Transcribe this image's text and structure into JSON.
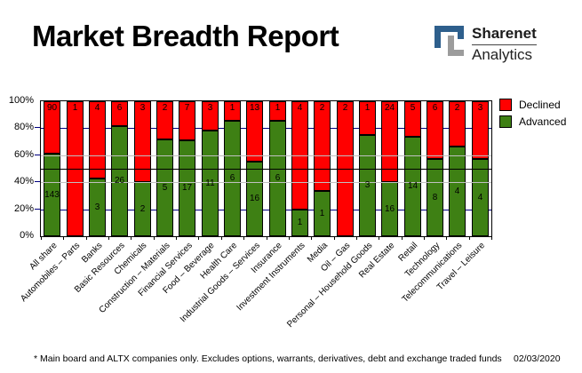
{
  "title": "Market Breadth Report",
  "logo": {
    "name": "Sharenet",
    "division": "Analytics"
  },
  "colors": {
    "declined": "#ff0000",
    "advanced": "#3e8014",
    "grid_navy": "#000080",
    "grid_gray": "#c0c0c0",
    "half_line": "#000000",
    "logo_blue": "#2e5f8c",
    "logo_gray": "#9c9c9c"
  },
  "legend": {
    "items": [
      {
        "label": "Declined",
        "color": "#ff0000"
      },
      {
        "label": "Advanced",
        "color": "#3e8014"
      }
    ]
  },
  "chart_data": {
    "type": "bar",
    "stacked": true,
    "normalized": "percent_of_total",
    "title": "Market Breadth Report",
    "xlabel": "",
    "ylabel": "",
    "ylim": [
      0,
      100
    ],
    "y_ticks": [
      {
        "label": "100%",
        "value": 100
      },
      {
        "label": "80%",
        "value": 80
      },
      {
        "label": "60%",
        "value": 60
      },
      {
        "label": "40%",
        "value": 40
      },
      {
        "label": "20%",
        "value": 20
      },
      {
        "label": "0%",
        "value": 0
      }
    ],
    "gridlines": {
      "navy": [
        80,
        20
      ],
      "gray": [
        60,
        40
      ],
      "black": [
        50
      ]
    },
    "legend_position": "top-right",
    "categories": [
      "All share",
      "Automobiles – Parts",
      "Banks",
      "Basic Resources",
      "Chemicals",
      "Construction – Materials",
      "Financial Services",
      "Food – Beverage",
      "Health Care",
      "Industrial Goods – Services",
      "Insurance",
      "Investment Instruments",
      "Media",
      "Oil – Gas",
      "Personal – Household Goods",
      "Real Estate",
      "Retail",
      "Technology",
      "Telecommunications",
      "Travel – Leisure"
    ],
    "series": [
      {
        "name": "Declined",
        "color": "#ff0000",
        "values": [
          90,
          1,
          4,
          6,
          3,
          2,
          7,
          3,
          1,
          13,
          1,
          4,
          2,
          2,
          1,
          24,
          5,
          6,
          2,
          3
        ]
      },
      {
        "name": "Advanced",
        "color": "#3e8014",
        "values": [
          143,
          0,
          3,
          26,
          2,
          5,
          17,
          11,
          6,
          16,
          6,
          1,
          1,
          0,
          3,
          16,
          14,
          8,
          4,
          4
        ]
      }
    ]
  },
  "footer": {
    "note": "* Main board and ALTX companies only. Excludes options, warrants, derivatives, debt and exchange traded funds",
    "date": "02/03/2020"
  }
}
